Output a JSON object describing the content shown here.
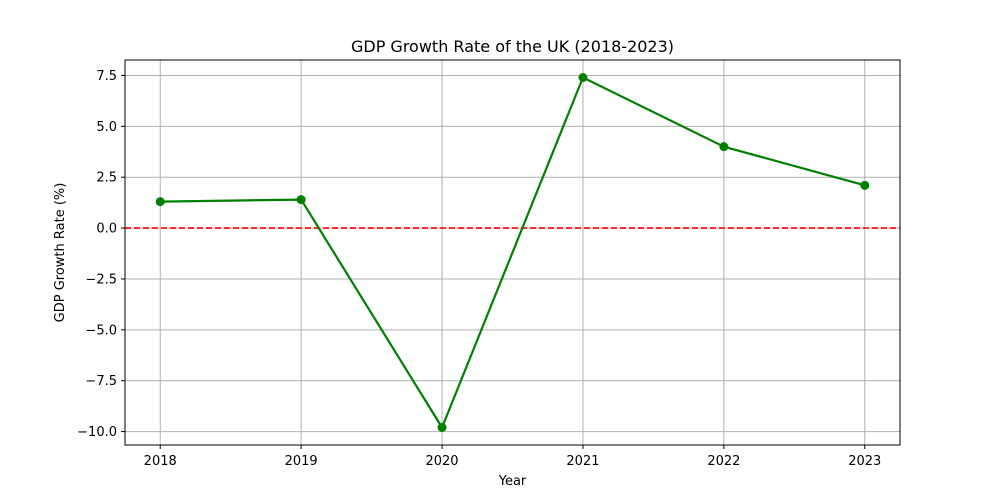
{
  "chart_data": {
    "type": "line",
    "title": "GDP Growth Rate of the UK (2018-2023)",
    "xlabel": "Year",
    "ylabel": "GDP Growth Rate (%)",
    "x": [
      2018,
      2019,
      2020,
      2021,
      2022,
      2023
    ],
    "series": [
      {
        "values": [
          1.3,
          1.4,
          -9.8,
          7.4,
          4.0,
          2.1
        ],
        "color": "#008000",
        "marker": "circle"
      }
    ],
    "xlim": [
      2017.75,
      2023.25
    ],
    "ylim": [
      -10.66,
      8.26
    ],
    "xticks": [
      2018,
      2019,
      2020,
      2021,
      2022,
      2023
    ],
    "xtick_labels": [
      "2018",
      "2019",
      "2020",
      "2021",
      "2022",
      "2023"
    ],
    "yticks": [
      -10.0,
      -7.5,
      -5.0,
      -2.5,
      0.0,
      2.5,
      5.0,
      7.5
    ],
    "ytick_labels": [
      "−10.0",
      "−7.5",
      "−5.0",
      "−2.5",
      "0.0",
      "2.5",
      "5.0",
      "7.5"
    ],
    "grid": true,
    "reference_line": {
      "y": 0,
      "color": "#ff0000",
      "style": "dashed"
    }
  }
}
